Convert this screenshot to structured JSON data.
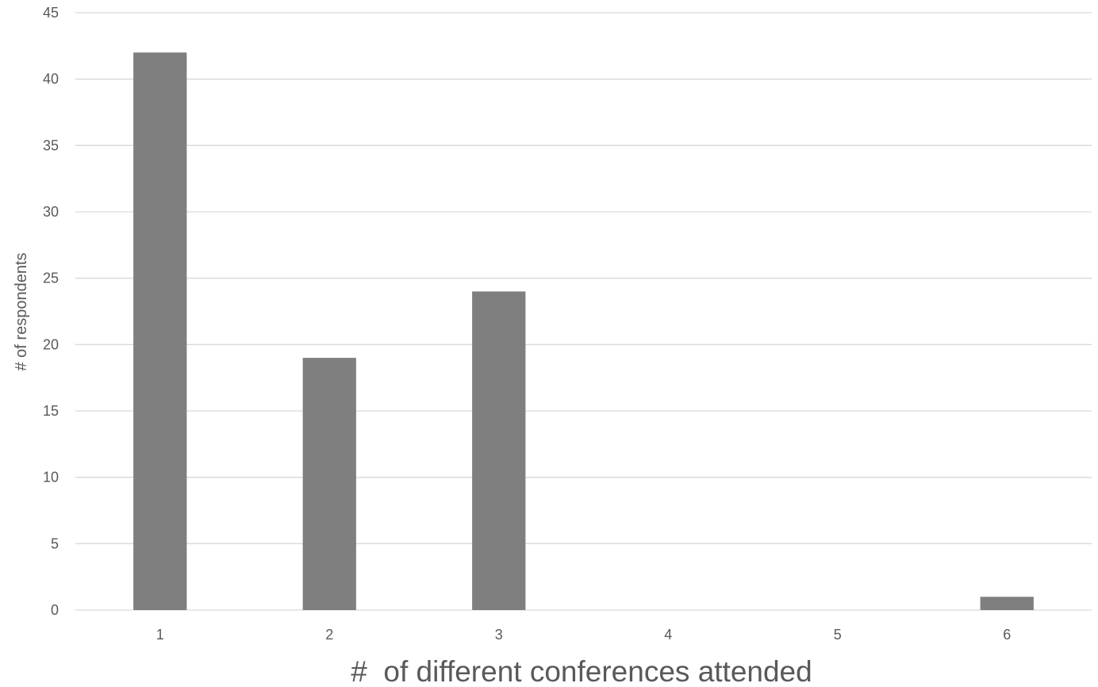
{
  "chart_data": {
    "type": "bar",
    "categories": [
      "1",
      "2",
      "3",
      "4",
      "5",
      "6"
    ],
    "values": [
      42,
      19,
      24,
      0,
      0,
      1
    ],
    "title": "",
    "xlabel": "#  of different conferences attended",
    "ylabel": "# of respondents",
    "ylim": [
      0,
      45
    ],
    "yticks": [
      "0",
      "5",
      "10",
      "15",
      "20",
      "25",
      "30",
      "35",
      "40",
      "45"
    ],
    "grid": true,
    "legend": "none",
    "bar_color": "#7f7f7f",
    "grid_color": "#d9d9d9",
    "text_color": "#595959"
  }
}
